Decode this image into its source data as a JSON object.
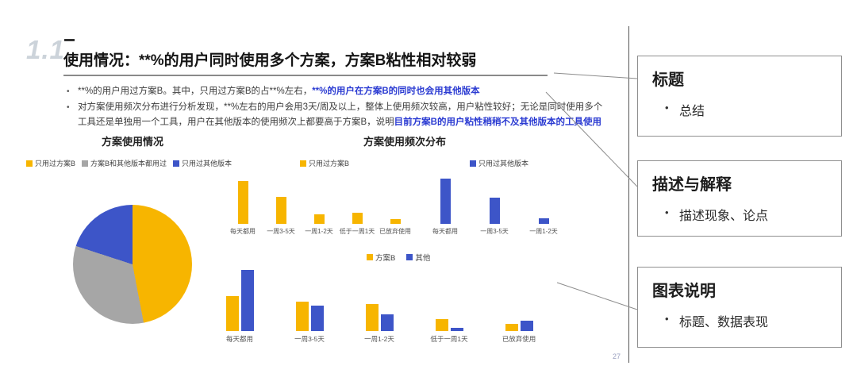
{
  "colors": {
    "accent_yellow": "#F7B500",
    "accent_blue": "#3D55C8",
    "neutral_gray": "#A6A6A6",
    "em_text": "#2B3BD2"
  },
  "slide": {
    "section_number": "1.1",
    "title": "使用情况：**%的用户同时使用多个方案，方案B粘性相对较弱",
    "bullets": [
      {
        "segments": [
          {
            "text": "**%的用户用过方案B。其中，只用过方案B的占**%左右，",
            "em": false
          },
          {
            "text": "**%的用户在方案B的同时也会用其他版本",
            "em": true
          }
        ]
      },
      {
        "segments": [
          {
            "text": "对方案使用频次分布进行分析发现，**%左右的用户会用3天/周及以上，整体上使用频次较高，用户粘性较好；无论是同时使用多个工具还是单独用一个工具，用户在其他版本的使用频次上都要高于方案B，说明",
            "em": false
          },
          {
            "text": "目前方案B的用户粘性稍稍不及其他版本的工具使用",
            "em": true
          }
        ]
      }
    ],
    "pie_title": "方案使用情况",
    "freq_title": "方案使用频次分布",
    "page_number": "27"
  },
  "annotations": [
    {
      "heading": "标题",
      "bullet": "总结"
    },
    {
      "heading": "描述与解释",
      "bullet": "描述现象、论点"
    },
    {
      "heading": "图表说明",
      "bullet": "标题、数据表现"
    }
  ],
  "chart_data": [
    {
      "id": "pie_usage",
      "type": "pie",
      "title": "方案使用情况",
      "labels": [
        "只用过方案B",
        "方案B和其他版本都用过",
        "只用过其他版本"
      ],
      "values": [
        47,
        33,
        20
      ],
      "colors": [
        "#F7B500",
        "#A6A6A6",
        "#3D55C8"
      ],
      "legend_position": "top"
    },
    {
      "id": "freq_only_b",
      "type": "bar",
      "series_label": "只用过方案B",
      "color": "#F7B500",
      "categories": [
        "每天都用",
        "一周3-5天",
        "一周1-2天",
        "低于一周1天",
        "已放弃使用"
      ],
      "values": [
        45,
        28,
        10,
        12,
        5
      ],
      "ymax": 50
    },
    {
      "id": "freq_only_other",
      "type": "bar",
      "series_label": "只用过其他版本",
      "color": "#3D55C8",
      "categories": [
        "每天都用",
        "一周3-5天",
        "一周1-2天"
      ],
      "values": [
        52,
        30,
        6
      ],
      "ymax": 55
    },
    {
      "id": "freq_grouped",
      "type": "bar-grouped",
      "categories": [
        "每天都用",
        "一周3-5天",
        "一周1-2天",
        "低于一周1天",
        "已放弃使用"
      ],
      "series": [
        {
          "name": "方案B",
          "color": "#F7B500",
          "values": [
            40,
            34,
            31,
            14,
            8
          ]
        },
        {
          "name": "其他",
          "color": "#3D55C8",
          "values": [
            70,
            29,
            19,
            4,
            12
          ]
        }
      ],
      "ymax": 75
    }
  ]
}
